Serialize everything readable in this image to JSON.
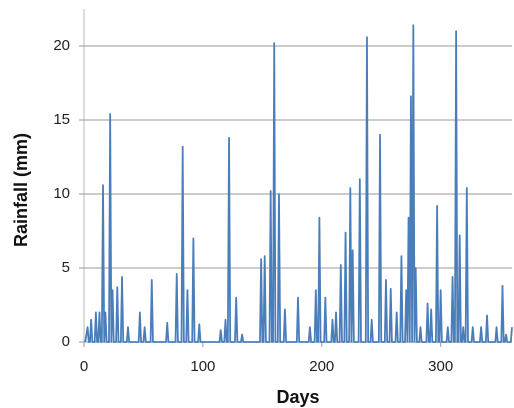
{
  "chart_data": {
    "type": "line",
    "xlabel": "Days",
    "ylabel": "Rainfall (mm)",
    "color": "#4a7ebb",
    "grid": true,
    "xlim": [
      0,
      360
    ],
    "xticks": [
      0,
      100,
      200,
      300
    ],
    "ylim": [
      0,
      22.5
    ],
    "yticks": [
      0,
      5,
      10,
      15,
      20
    ],
    "x": [
      1,
      3,
      4,
      5,
      6,
      7,
      9,
      10,
      11,
      12,
      13,
      14,
      15,
      16,
      17,
      18,
      19,
      21,
      22,
      23,
      24,
      25,
      27,
      28,
      29,
      31,
      32,
      33,
      36,
      37,
      38,
      46,
      47,
      48,
      50,
      51,
      52,
      56,
      57,
      58,
      69,
      70,
      71,
      77,
      78,
      79,
      82,
      83,
      84,
      86,
      87,
      88,
      91,
      92,
      93,
      96,
      97,
      98,
      114,
      115,
      116,
      118,
      119,
      120,
      121,
      122,
      123,
      127,
      128,
      129,
      132,
      133,
      134,
      148,
      149,
      150,
      151,
      152,
      153,
      156,
      157,
      158,
      159,
      160,
      161,
      163,
      164,
      165,
      168,
      169,
      170,
      179,
      180,
      181,
      189,
      190,
      191,
      194,
      195,
      196,
      197,
      198,
      199,
      202,
      203,
      204,
      208,
      209,
      210,
      211,
      212,
      213,
      215,
      216,
      217,
      219,
      220,
      221,
      223,
      224,
      225,
      226,
      227,
      231,
      232,
      233,
      237,
      238,
      239,
      241,
      242,
      243,
      248,
      249,
      250,
      253,
      254,
      255,
      257,
      258,
      259,
      262,
      263,
      264,
      266,
      267,
      268,
      270,
      271,
      272,
      273,
      274,
      275,
      276,
      277,
      278,
      279,
      280,
      282,
      283,
      284,
      288,
      289,
      290,
      291,
      292,
      293,
      296,
      297,
      298,
      299,
      300,
      301,
      305,
      306,
      307,
      309,
      310,
      311,
      312,
      313,
      314,
      315,
      316,
      317,
      318,
      319,
      320,
      321,
      322,
      323,
      326,
      327,
      328,
      333,
      334,
      335,
      338,
      339,
      340,
      346,
      347,
      348,
      351,
      352,
      353,
      354,
      355,
      356,
      359,
      360
    ],
    "values": [
      0,
      1,
      0,
      0,
      1.5,
      0,
      0,
      2,
      0,
      0,
      2,
      0,
      0,
      10.6,
      0,
      2,
      0,
      0,
      15.4,
      0,
      3.5,
      0,
      0,
      3.7,
      0,
      0,
      4.4,
      0,
      0,
      1,
      0,
      0,
      2,
      0,
      0,
      1,
      0,
      0,
      4.2,
      0,
      0,
      1.3,
      0,
      0,
      4.6,
      0,
      0,
      13.2,
      0,
      0,
      3.5,
      0,
      0,
      7,
      0,
      0,
      1.2,
      0,
      0,
      0.8,
      0,
      0,
      1.5,
      0,
      0,
      13.8,
      0,
      0,
      3,
      0,
      0,
      0.5,
      0,
      0,
      5.6,
      0,
      0,
      5.8,
      0,
      0,
      10.2,
      0,
      0,
      20.2,
      0,
      0,
      10,
      0,
      0,
      2.2,
      0,
      0,
      3,
      0,
      0,
      1,
      0,
      0,
      3.5,
      0,
      0,
      8.4,
      0,
      0,
      3,
      0,
      0,
      1.5,
      0,
      0,
      2,
      0,
      0,
      5.2,
      0,
      0,
      7.4,
      0,
      0,
      10.4,
      0,
      6.2,
      0,
      0,
      11,
      0,
      0,
      20.6,
      0,
      0,
      1.5,
      0,
      0,
      14,
      0,
      0,
      4.2,
      0,
      0,
      3.6,
      0,
      0,
      2,
      0,
      0,
      5.8,
      0,
      0,
      3.5,
      0,
      8.4,
      0,
      16.6,
      0,
      21.4,
      0,
      5,
      0,
      0,
      1,
      0,
      0,
      2.6,
      0,
      0,
      2.2,
      0,
      0,
      9.2,
      0,
      0,
      3.5,
      0,
      0,
      1,
      0,
      0,
      4.4,
      0,
      0,
      21,
      0,
      0,
      7.2,
      0,
      0,
      1,
      0,
      0,
      10.4,
      0,
      0,
      1,
      0,
      0,
      1,
      0,
      0,
      1.8,
      0,
      0,
      1,
      0,
      0,
      3.8,
      0,
      0,
      0.5,
      0,
      0,
      1
    ]
  }
}
